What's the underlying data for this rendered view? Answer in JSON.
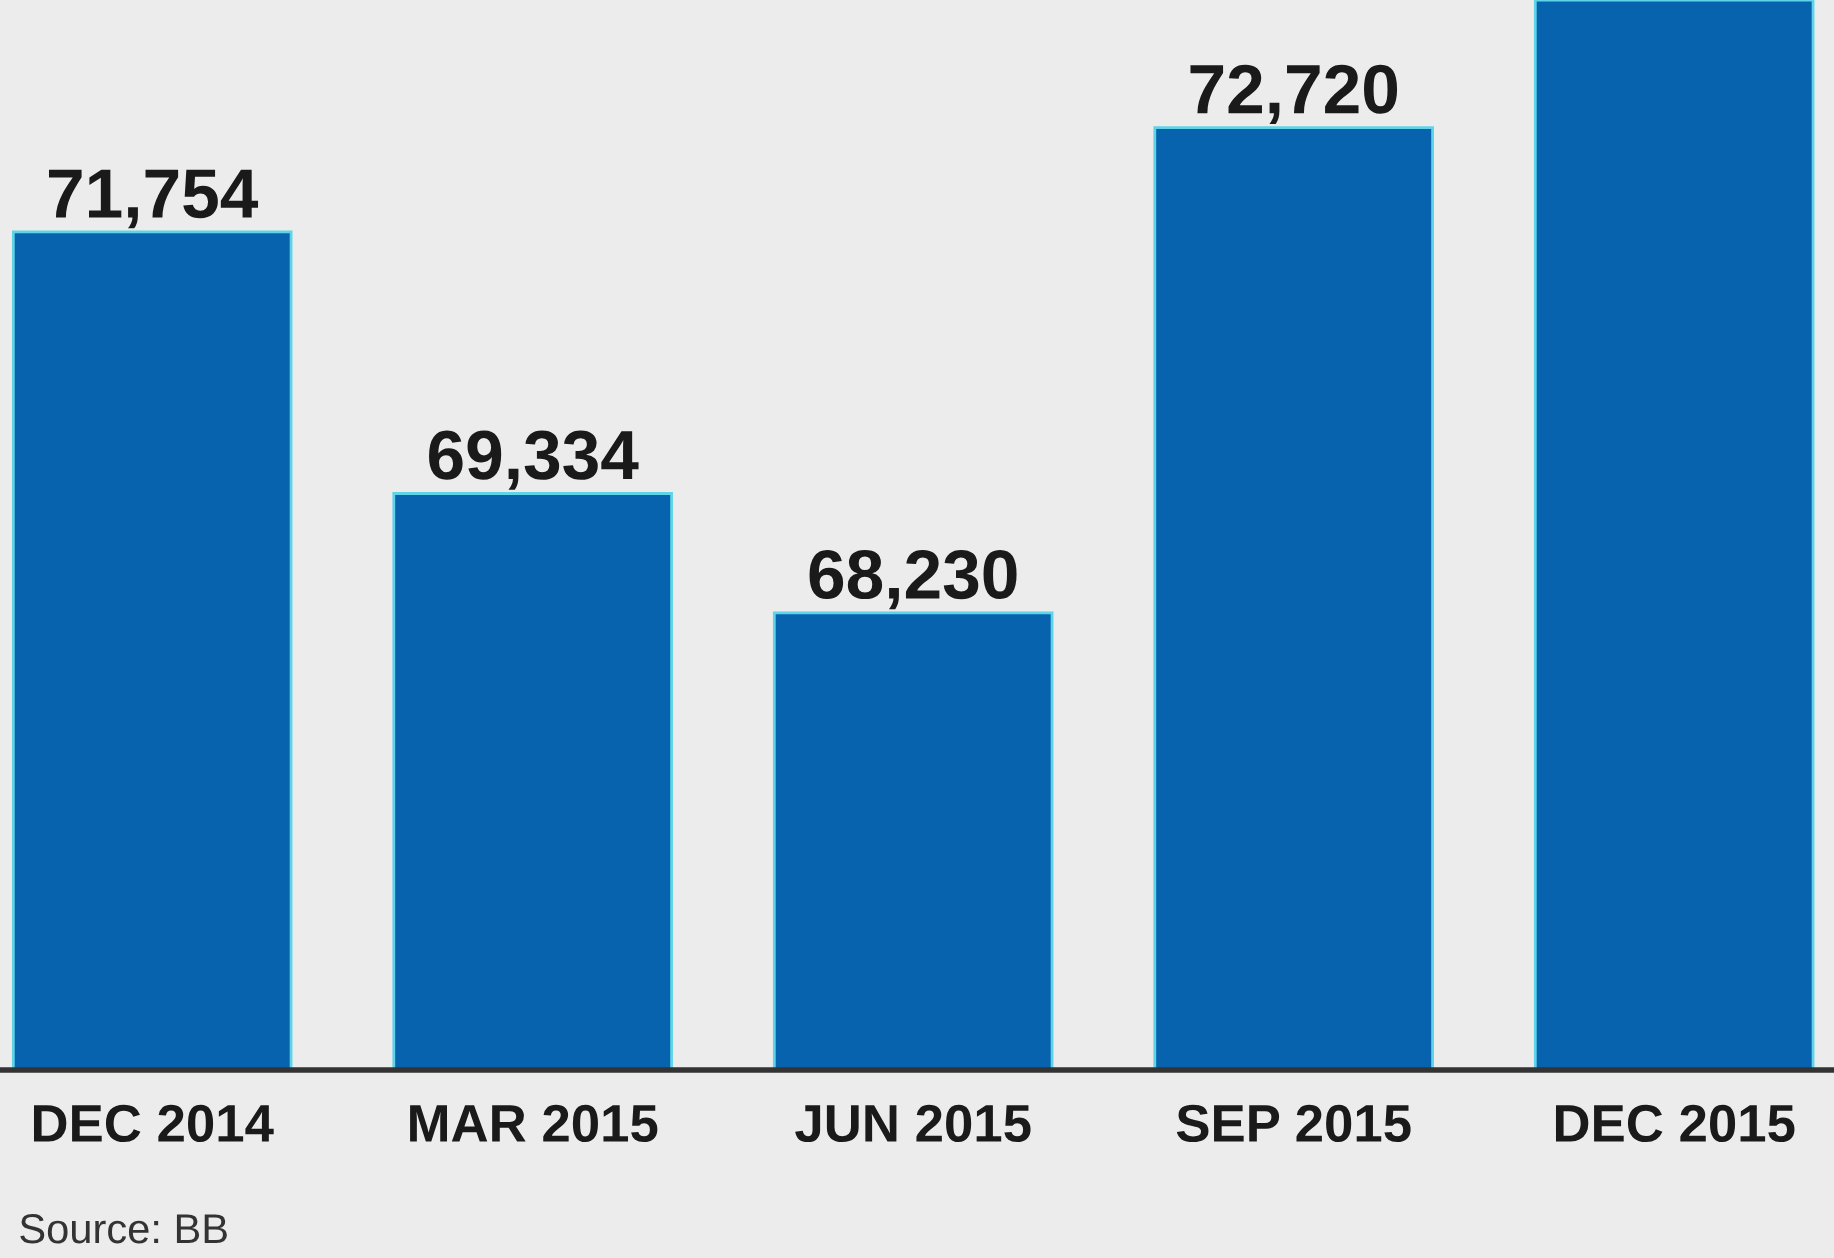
{
  "chart_data": {
    "type": "bar",
    "categories": [
      "DEC 2014",
      "MAR 2015",
      "JUN 2015",
      "SEP 2015",
      "DEC 2015"
    ],
    "values": [
      71754,
      69334,
      68230,
      72720,
      73900
    ],
    "value_labels": [
      "71,754",
      "69,334",
      "68,230",
      "72,720",
      null
    ],
    "color": "#0763ad",
    "ylim": [
      64000,
      73900
    ],
    "grid": false,
    "legend": false,
    "annotations": [
      "Source: BB"
    ]
  }
}
